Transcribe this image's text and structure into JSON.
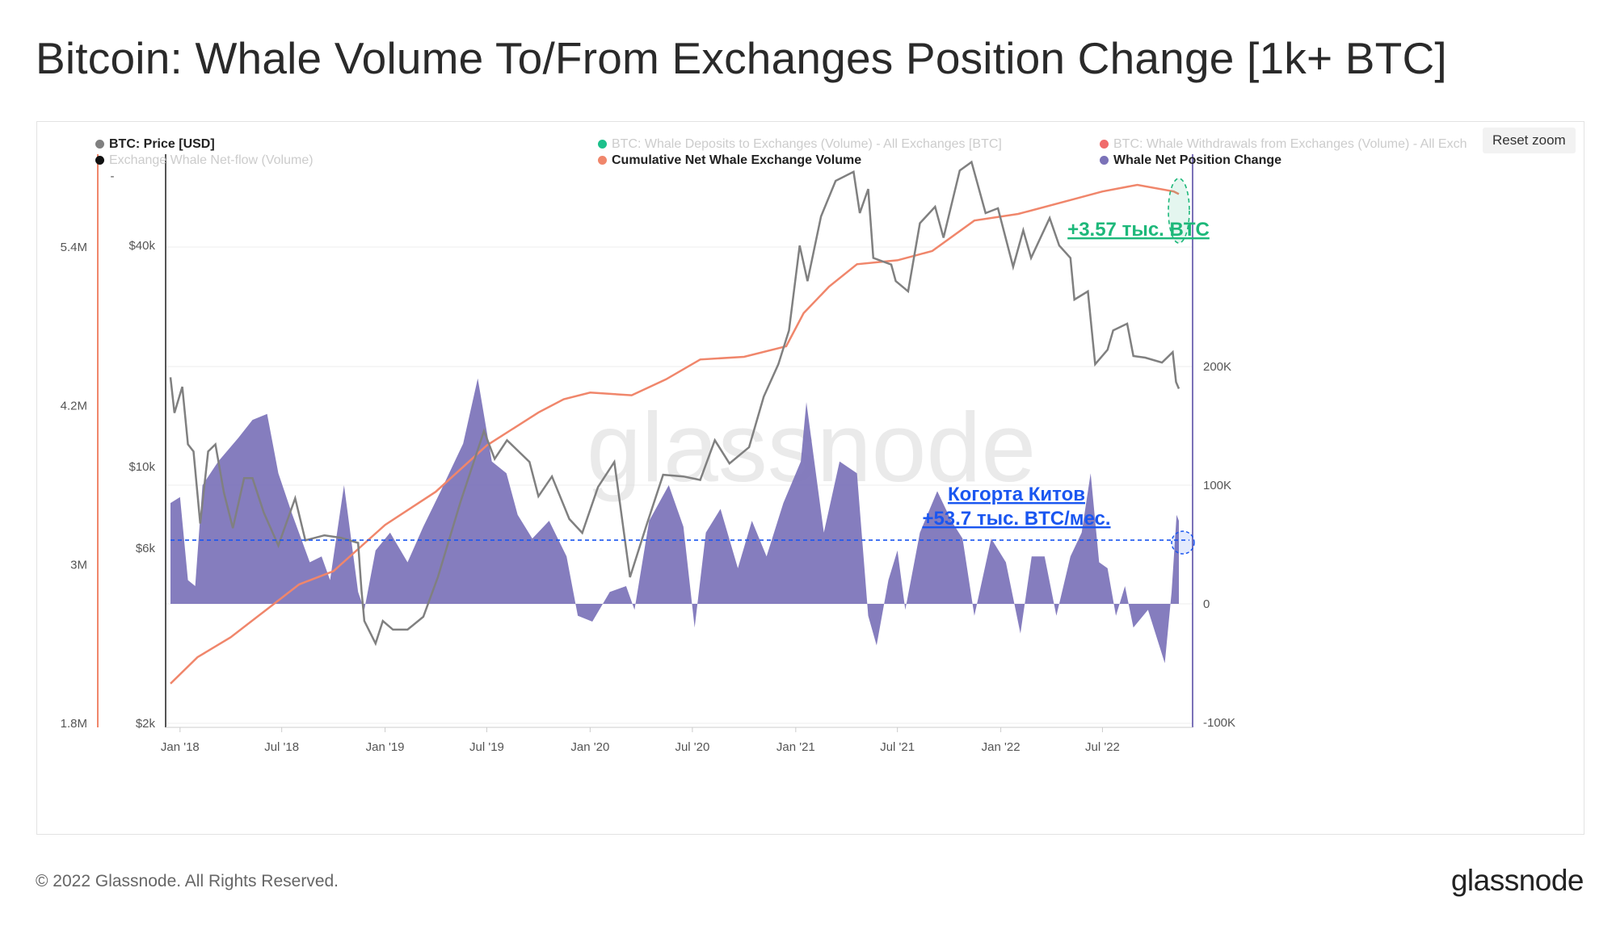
{
  "title": "Bitcoin: Whale Volume To/From Exchanges Position Change [1k+ BTC]",
  "reset_zoom_label": "Reset zoom",
  "footer": {
    "copyright": "© 2022 Glassnode. All Rights Reserved.",
    "logo": "glassnode"
  },
  "watermark": "glassnode",
  "legend": [
    {
      "label": "BTC: Price [USD]",
      "color": "#808080",
      "active": true
    },
    {
      "label": "BTC: Whale Deposits to Exchanges (Volume) - All Exchanges [BTC]",
      "color": "#1cc08b",
      "active": false
    },
    {
      "label": "BTC: Whale Withdrawals from Exchanges (Volume) - All Exch",
      "color": "#f06b6b",
      "active": false
    },
    {
      "label": "Exchange Whale Net-flow (Volume)",
      "color": "#111111",
      "active": false
    },
    {
      "label": "Cumulative Net Whale Exchange Volume",
      "color": "#f0866b",
      "active": true
    },
    {
      "label": "Whale Net Position Change",
      "color": "#7b72b8",
      "active": true
    }
  ],
  "chart_data": {
    "type": "line",
    "x_axis": {
      "ticks": [
        "Jan '18",
        "Jul '18",
        "Jan '19",
        "Jul '19",
        "Jan '20",
        "Jul '20",
        "Jan '21",
        "Jul '21",
        "Jan '22",
        "Jul '22"
      ]
    },
    "left_axis_cumulative": {
      "ticks": [
        "1.8M",
        "3M",
        "4.2M",
        "5.4M"
      ],
      "range": [
        1800000,
        5400000
      ]
    },
    "left_axis_price": {
      "ticks": [
        "$2k",
        "$6k",
        "$10k",
        "$40k"
      ],
      "scale": "log",
      "range": [
        2000,
        100000
      ],
      "extra_tick": "-"
    },
    "right_axis_position_change": {
      "ticks": [
        "-100K",
        "0",
        "100K",
        "200K"
      ],
      "range": [
        -100000,
        250000
      ]
    },
    "colors": {
      "price": "#808080",
      "cumulative": "#f0866b",
      "position_change": "#7b72b8",
      "annotation_green": "#1db87a",
      "annotation_blue": "#1a56f0"
    },
    "series": [
      {
        "name": "BTC: Price [USD]",
        "axis": "price",
        "points": [
          [
            "2017-12-15",
            17500
          ],
          [
            "2017-12-22",
            14000
          ],
          [
            "2018-01-05",
            16500
          ],
          [
            "2018-01-15",
            11500
          ],
          [
            "2018-01-25",
            11000
          ],
          [
            "2018-02-06",
            7000
          ],
          [
            "2018-02-20",
            11000
          ],
          [
            "2018-03-05",
            11500
          ],
          [
            "2018-03-20",
            8500
          ],
          [
            "2018-04-05",
            6800
          ],
          [
            "2018-04-25",
            9300
          ],
          [
            "2018-05-10",
            9300
          ],
          [
            "2018-05-30",
            7500
          ],
          [
            "2018-06-25",
            6100
          ],
          [
            "2018-07-25",
            8200
          ],
          [
            "2018-08-12",
            6300
          ],
          [
            "2018-09-15",
            6500
          ],
          [
            "2018-10-15",
            6400
          ],
          [
            "2018-11-14",
            6200
          ],
          [
            "2018-11-20",
            4600
          ],
          [
            "2018-11-25",
            3800
          ],
          [
            "2018-12-15",
            3300
          ],
          [
            "2018-12-28",
            3800
          ],
          [
            "2019-01-15",
            3600
          ],
          [
            "2019-02-10",
            3600
          ],
          [
            "2019-03-10",
            3900
          ],
          [
            "2019-04-05",
            5000
          ],
          [
            "2019-05-15",
            8000
          ],
          [
            "2019-06-26",
            12500
          ],
          [
            "2019-07-15",
            10500
          ],
          [
            "2019-08-06",
            11800
          ],
          [
            "2019-09-15",
            10300
          ],
          [
            "2019-10-01",
            8300
          ],
          [
            "2019-10-25",
            9400
          ],
          [
            "2019-11-25",
            7200
          ],
          [
            "2019-12-18",
            6600
          ],
          [
            "2020-01-15",
            8800
          ],
          [
            "2020-02-13",
            10300
          ],
          [
            "2020-03-12",
            5000
          ],
          [
            "2020-04-10",
            6900
          ],
          [
            "2020-05-10",
            9500
          ],
          [
            "2020-06-15",
            9400
          ],
          [
            "2020-07-15",
            9200
          ],
          [
            "2020-08-10",
            11800
          ],
          [
            "2020-09-05",
            10200
          ],
          [
            "2020-10-10",
            11300
          ],
          [
            "2020-11-05",
            15500
          ],
          [
            "2020-12-01",
            19000
          ],
          [
            "2020-12-20",
            23500
          ],
          [
            "2021-01-08",
            40000
          ],
          [
            "2021-01-22",
            32000
          ],
          [
            "2021-02-15",
            48000
          ],
          [
            "2021-03-13",
            60000
          ],
          [
            "2021-04-14",
            63500
          ],
          [
            "2021-04-25",
            49000
          ],
          [
            "2021-05-10",
            57000
          ],
          [
            "2021-05-19",
            37000
          ],
          [
            "2021-06-20",
            35500
          ],
          [
            "2021-06-28",
            32000
          ],
          [
            "2021-07-20",
            30000
          ],
          [
            "2021-08-10",
            46000
          ],
          [
            "2021-09-06",
            51000
          ],
          [
            "2021-09-21",
            42000
          ],
          [
            "2021-10-20",
            64000
          ],
          [
            "2021-11-10",
            67500
          ],
          [
            "2021-12-05",
            49000
          ],
          [
            "2021-12-27",
            50500
          ],
          [
            "2022-01-23",
            35000
          ],
          [
            "2022-02-10",
            44000
          ],
          [
            "2022-02-24",
            37000
          ],
          [
            "2022-03-29",
            47500
          ],
          [
            "2022-04-15",
            40000
          ],
          [
            "2022-05-05",
            37000
          ],
          [
            "2022-05-12",
            28500
          ],
          [
            "2022-06-05",
            30000
          ],
          [
            "2022-06-18",
            19000
          ],
          [
            "2022-07-10",
            20800
          ],
          [
            "2022-07-20",
            23500
          ],
          [
            "2022-08-14",
            24500
          ],
          [
            "2022-08-25",
            20000
          ],
          [
            "2022-09-15",
            19800
          ],
          [
            "2022-10-15",
            19200
          ],
          [
            "2022-11-03",
            20500
          ],
          [
            "2022-11-09",
            17000
          ],
          [
            "2022-11-14",
            16300
          ]
        ]
      },
      {
        "name": "Cumulative Net Whale Exchange Volume",
        "axis": "cumulative",
        "points": [
          [
            "2017-12-15",
            2100000
          ],
          [
            "2018-02-01",
            2300000
          ],
          [
            "2018-04-01",
            2450000
          ],
          [
            "2018-06-01",
            2650000
          ],
          [
            "2018-08-01",
            2850000
          ],
          [
            "2018-10-01",
            2950000
          ],
          [
            "2019-01-01",
            3300000
          ],
          [
            "2019-04-01",
            3550000
          ],
          [
            "2019-07-01",
            3900000
          ],
          [
            "2019-10-01",
            4150000
          ],
          [
            "2019-11-15",
            4250000
          ],
          [
            "2020-01-01",
            4300000
          ],
          [
            "2020-03-15",
            4280000
          ],
          [
            "2020-05-15",
            4400000
          ],
          [
            "2020-07-15",
            4550000
          ],
          [
            "2020-10-01",
            4570000
          ],
          [
            "2020-12-15",
            4650000
          ],
          [
            "2021-01-15",
            4900000
          ],
          [
            "2021-03-01",
            5100000
          ],
          [
            "2021-04-20",
            5270000
          ],
          [
            "2021-07-01",
            5300000
          ],
          [
            "2021-09-01",
            5370000
          ],
          [
            "2021-11-15",
            5600000
          ],
          [
            "2022-02-01",
            5650000
          ],
          [
            "2022-05-01",
            5750000
          ],
          [
            "2022-07-01",
            5820000
          ],
          [
            "2022-09-01",
            5870000
          ],
          [
            "2022-11-05",
            5820000
          ],
          [
            "2022-11-14",
            5800000
          ]
        ]
      },
      {
        "name": "Whale Net Position Change",
        "axis": "position_change",
        "type": "area",
        "points": [
          [
            "2017-12-15",
            85000
          ],
          [
            "2018-01-01",
            90000
          ],
          [
            "2018-01-15",
            20000
          ],
          [
            "2018-01-28",
            15000
          ],
          [
            "2018-02-10",
            100000
          ],
          [
            "2018-03-10",
            120000
          ],
          [
            "2018-04-15",
            140000
          ],
          [
            "2018-05-10",
            155000
          ],
          [
            "2018-06-05",
            160000
          ],
          [
            "2018-06-25",
            110000
          ],
          [
            "2018-07-20",
            75000
          ],
          [
            "2018-08-20",
            35000
          ],
          [
            "2018-09-10",
            40000
          ],
          [
            "2018-09-25",
            20000
          ],
          [
            "2018-10-20",
            100000
          ],
          [
            "2018-11-14",
            10000
          ],
          [
            "2018-11-25",
            -5000
          ],
          [
            "2018-12-15",
            45000
          ],
          [
            "2019-01-10",
            60000
          ],
          [
            "2019-02-10",
            35000
          ],
          [
            "2019-03-10",
            65000
          ],
          [
            "2019-04-10",
            95000
          ],
          [
            "2019-05-20",
            135000
          ],
          [
            "2019-06-15",
            190000
          ],
          [
            "2019-07-10",
            120000
          ],
          [
            "2019-08-05",
            110000
          ],
          [
            "2019-08-25",
            75000
          ],
          [
            "2019-09-20",
            55000
          ],
          [
            "2019-10-20",
            70000
          ],
          [
            "2019-11-20",
            40000
          ],
          [
            "2019-12-10",
            -10000
          ],
          [
            "2020-01-05",
            -15000
          ],
          [
            "2020-02-05",
            10000
          ],
          [
            "2020-03-05",
            15000
          ],
          [
            "2020-03-20",
            -5000
          ],
          [
            "2020-04-15",
            70000
          ],
          [
            "2020-05-20",
            100000
          ],
          [
            "2020-06-15",
            65000
          ],
          [
            "2020-07-05",
            -20000
          ],
          [
            "2020-07-25",
            60000
          ],
          [
            "2020-08-20",
            80000
          ],
          [
            "2020-09-20",
            30000
          ],
          [
            "2020-10-15",
            70000
          ],
          [
            "2020-11-10",
            40000
          ],
          [
            "2020-12-10",
            85000
          ],
          [
            "2021-01-10",
            120000
          ],
          [
            "2021-01-20",
            170000
          ],
          [
            "2021-02-20",
            60000
          ],
          [
            "2021-03-20",
            120000
          ],
          [
            "2021-04-20",
            110000
          ],
          [
            "2021-05-10",
            -10000
          ],
          [
            "2021-05-25",
            -35000
          ],
          [
            "2021-06-15",
            20000
          ],
          [
            "2021-07-01",
            45000
          ],
          [
            "2021-07-15",
            -5000
          ],
          [
            "2021-08-10",
            60000
          ],
          [
            "2021-09-10",
            95000
          ],
          [
            "2021-10-05",
            70000
          ],
          [
            "2021-10-25",
            55000
          ],
          [
            "2021-11-15",
            -10000
          ],
          [
            "2021-12-15",
            55000
          ],
          [
            "2022-01-10",
            35000
          ],
          [
            "2022-02-05",
            -25000
          ],
          [
            "2022-02-25",
            40000
          ],
          [
            "2022-03-20",
            40000
          ],
          [
            "2022-04-10",
            -10000
          ],
          [
            "2022-05-05",
            40000
          ],
          [
            "2022-05-25",
            60000
          ],
          [
            "2022-06-10",
            110000
          ],
          [
            "2022-06-25",
            35000
          ],
          [
            "2022-07-10",
            30000
          ],
          [
            "2022-07-25",
            -10000
          ],
          [
            "2022-08-10",
            15000
          ],
          [
            "2022-08-25",
            -20000
          ],
          [
            "2022-09-20",
            -5000
          ],
          [
            "2022-10-20",
            -50000
          ],
          [
            "2022-11-01",
            10000
          ],
          [
            "2022-11-10",
            75000
          ],
          [
            "2022-11-14",
            70000
          ]
        ]
      }
    ],
    "annotations": [
      {
        "text": "+3.57 тыс. BTC",
        "color": "#1db87a"
      },
      {
        "text_lines": [
          "Когорта Китов",
          "+53.7 тыс. BTC/мес."
        ],
        "color": "#1a56f0",
        "reference_value": 53700
      }
    ]
  }
}
